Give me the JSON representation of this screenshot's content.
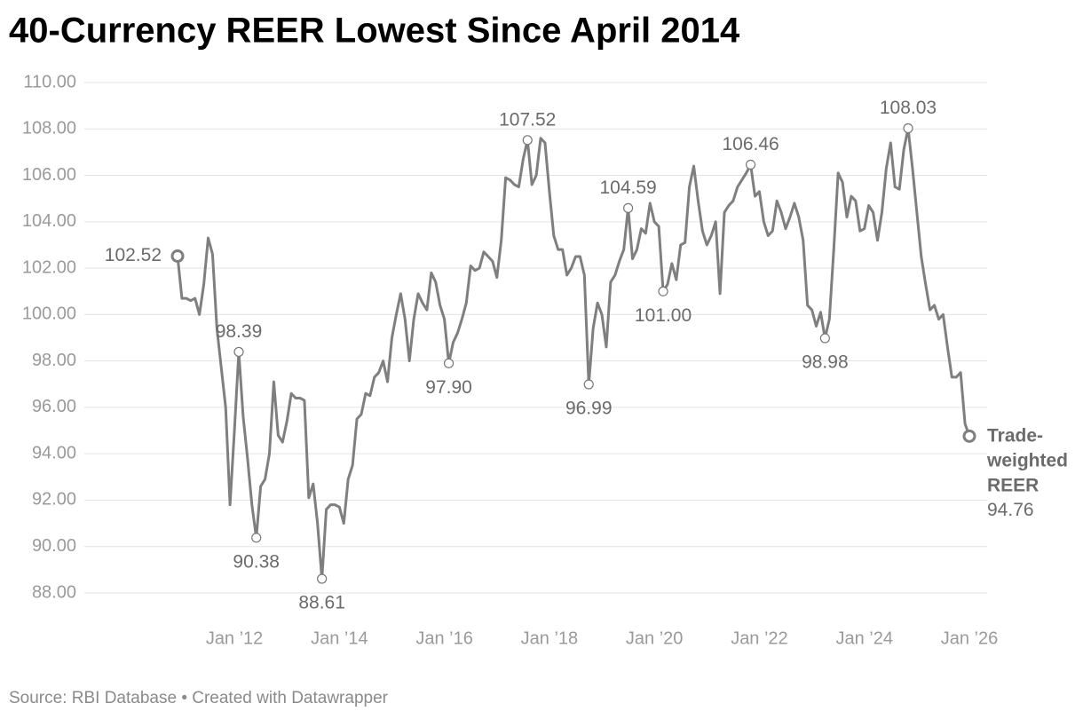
{
  "chart_data": {
    "type": "line",
    "title": "40-Currency REER Lowest Since April 2014",
    "source": "Source: RBI Database • Created with Datawrapper",
    "x": [
      "2010-12",
      "2011-01",
      "2011-02",
      "2011-03",
      "2011-04",
      "2011-05",
      "2011-06",
      "2011-07",
      "2011-08",
      "2011-09",
      "2011-10",
      "2011-11",
      "2011-12",
      "2012-01",
      "2012-02",
      "2012-03",
      "2012-04",
      "2012-05",
      "2012-06",
      "2012-07",
      "2012-08",
      "2012-09",
      "2012-10",
      "2012-11",
      "2012-12",
      "2013-01",
      "2013-02",
      "2013-03",
      "2013-04",
      "2013-05",
      "2013-06",
      "2013-07",
      "2013-08",
      "2013-09",
      "2013-10",
      "2013-11",
      "2013-12",
      "2014-01",
      "2014-02",
      "2014-03",
      "2014-04",
      "2014-05",
      "2014-06",
      "2014-07",
      "2014-08",
      "2014-09",
      "2014-10",
      "2014-11",
      "2014-12",
      "2015-01",
      "2015-02",
      "2015-03",
      "2015-04",
      "2015-05",
      "2015-06",
      "2015-07",
      "2015-08",
      "2015-09",
      "2015-10",
      "2015-11",
      "2015-12",
      "2016-01",
      "2016-02",
      "2016-03",
      "2016-04",
      "2016-05",
      "2016-06",
      "2016-07",
      "2016-08",
      "2016-09",
      "2016-10",
      "2016-11",
      "2016-12",
      "2017-01",
      "2017-02",
      "2017-03",
      "2017-04",
      "2017-05",
      "2017-06",
      "2017-07",
      "2017-08",
      "2017-09",
      "2017-10",
      "2017-11",
      "2017-12",
      "2018-01",
      "2018-02",
      "2018-03",
      "2018-04",
      "2018-05",
      "2018-06",
      "2018-07",
      "2018-08",
      "2018-09",
      "2018-10",
      "2018-11",
      "2018-12",
      "2019-01",
      "2019-02",
      "2019-03",
      "2019-04",
      "2019-05",
      "2019-06",
      "2019-07",
      "2019-08",
      "2019-09",
      "2019-10",
      "2019-11",
      "2019-12",
      "2020-01",
      "2020-02",
      "2020-03",
      "2020-04",
      "2020-05",
      "2020-06",
      "2020-07",
      "2020-08",
      "2020-09",
      "2020-10",
      "2020-11",
      "2020-12",
      "2021-01",
      "2021-02",
      "2021-03",
      "2021-04",
      "2021-05",
      "2021-06",
      "2021-07",
      "2021-08",
      "2021-09",
      "2021-10",
      "2021-11",
      "2021-12",
      "2022-01",
      "2022-02",
      "2022-03",
      "2022-04",
      "2022-05",
      "2022-06",
      "2022-07",
      "2022-08",
      "2022-09",
      "2022-10",
      "2022-11",
      "2022-12",
      "2023-01",
      "2023-02",
      "2023-03",
      "2023-04",
      "2023-05",
      "2023-06",
      "2023-07",
      "2023-08",
      "2023-09",
      "2023-10",
      "2023-11",
      "2023-12",
      "2024-01",
      "2024-02",
      "2024-03",
      "2024-04",
      "2024-05",
      "2024-06",
      "2024-07",
      "2024-08",
      "2024-09",
      "2024-10",
      "2024-11",
      "2024-12",
      "2025-01",
      "2025-02",
      "2025-03",
      "2025-04",
      "2025-05",
      "2025-06",
      "2025-07",
      "2025-08",
      "2025-09",
      "2025-10",
      "2025-11",
      "2025-12",
      "2026-01"
    ],
    "series": [
      {
        "name": "Trade-weighted REER",
        "color": "#7f7f7f",
        "values": [
          102.52,
          100.7,
          100.7,
          100.6,
          100.7,
          100.0,
          101.3,
          103.3,
          102.6,
          99.4,
          97.7,
          96.0,
          91.8,
          95.0,
          98.39,
          95.6,
          93.8,
          91.8,
          90.38,
          92.6,
          92.9,
          94.0,
          97.1,
          94.8,
          94.5,
          95.4,
          96.6,
          96.4,
          96.4,
          96.3,
          92.1,
          92.7,
          91.0,
          88.61,
          91.6,
          91.8,
          91.8,
          91.7,
          91.0,
          92.9,
          93.5,
          95.5,
          95.7,
          96.6,
          96.5,
          97.3,
          97.5,
          98.0,
          97.1,
          99.0,
          100.0,
          100.9,
          99.8,
          98.0,
          99.8,
          100.9,
          100.5,
          100.2,
          101.8,
          101.4,
          100.4,
          99.8,
          97.9,
          98.8,
          99.2,
          99.8,
          100.5,
          102.1,
          101.9,
          102.0,
          102.7,
          102.5,
          102.3,
          101.6,
          103.2,
          105.9,
          105.8,
          105.6,
          105.5,
          106.7,
          107.52,
          105.6,
          106.0,
          107.6,
          107.4,
          105.3,
          103.4,
          102.8,
          102.8,
          101.7,
          102.0,
          102.5,
          102.5,
          101.7,
          96.99,
          99.4,
          100.5,
          100.0,
          98.6,
          101.4,
          101.7,
          102.3,
          102.8,
          104.59,
          102.4,
          102.8,
          103.7,
          103.5,
          104.8,
          104.0,
          103.8,
          101.0,
          101.3,
          102.2,
          101.5,
          103.0,
          103.1,
          105.5,
          106.4,
          104.9,
          103.6,
          103.0,
          103.4,
          104.0,
          100.9,
          104.4,
          104.7,
          104.9,
          105.5,
          105.8,
          106.1,
          106.46,
          105.1,
          105.3,
          104.0,
          103.4,
          103.6,
          104.9,
          104.4,
          103.7,
          104.2,
          104.8,
          104.2,
          103.2,
          100.4,
          100.2,
          99.5,
          100.1,
          98.98,
          99.8,
          102.8,
          106.1,
          105.7,
          104.2,
          105.1,
          104.9,
          103.6,
          103.7,
          104.7,
          104.4,
          103.2,
          104.4,
          106.3,
          107.4,
          105.5,
          105.4,
          107.1,
          108.03,
          106.3,
          104.4,
          102.5,
          101.3,
          100.2,
          100.4,
          99.8,
          100.0,
          98.6,
          97.3,
          97.3,
          97.5,
          95.3,
          94.76
        ]
      }
    ],
    "annotations": [
      {
        "x": "2010-12",
        "label": "102.52"
      },
      {
        "x": "2012-02",
        "label": "98.39"
      },
      {
        "x": "2012-06",
        "label": "90.38"
      },
      {
        "x": "2013-09",
        "label": "88.61"
      },
      {
        "x": "2016-02",
        "label": "97.90"
      },
      {
        "x": "2017-08",
        "label": "107.52"
      },
      {
        "x": "2018-10",
        "label": "96.99"
      },
      {
        "x": "2019-07",
        "label": "104.59"
      },
      {
        "x": "2020-03",
        "label": "101.00"
      },
      {
        "x": "2021-11",
        "label": "106.46"
      },
      {
        "x": "2023-04",
        "label": "98.98"
      },
      {
        "x": "2024-11",
        "label": "108.03"
      },
      {
        "x": "2026-01",
        "label": "94.76"
      }
    ],
    "xlim": [
      "2010-12",
      "2026-01"
    ],
    "xticks": [
      {
        "value": "2012-01",
        "label": "Jan ’12"
      },
      {
        "value": "2014-01",
        "label": "Jan ’14"
      },
      {
        "value": "2016-01",
        "label": "Jan ’16"
      },
      {
        "value": "2018-01",
        "label": "Jan ’18"
      },
      {
        "value": "2020-01",
        "label": "Jan ’20"
      },
      {
        "value": "2022-01",
        "label": "Jan ’22"
      },
      {
        "value": "2024-01",
        "label": "Jan ’24"
      },
      {
        "value": "2026-01",
        "label": "Jan ’26"
      }
    ],
    "ylim": [
      88,
      110
    ],
    "yticks": [
      {
        "value": 110,
        "label": "110.00"
      },
      {
        "value": 108,
        "label": "108.00"
      },
      {
        "value": 106,
        "label": "106.00"
      },
      {
        "value": 104,
        "label": "104.00"
      },
      {
        "value": 102,
        "label": "102.00"
      },
      {
        "value": 100,
        "label": "100.00"
      },
      {
        "value": 98,
        "label": "98.00"
      },
      {
        "value": 96,
        "label": "96.00"
      },
      {
        "value": 94,
        "label": "94.00"
      },
      {
        "value": 92,
        "label": "92.00"
      },
      {
        "value": 90,
        "label": "90.00"
      },
      {
        "value": 88,
        "label": "88.00"
      }
    ],
    "grid": true
  }
}
